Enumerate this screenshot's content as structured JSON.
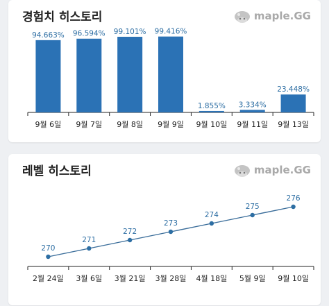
{
  "brand": {
    "text": "maple.GG"
  },
  "colors": {
    "bar": "#2b72b5",
    "line": "#3a6d9a",
    "point": "#2d6ea3",
    "label": "#2d6ea3",
    "axis": "#222222"
  },
  "exp_card": {
    "title": "경험치 히스토리"
  },
  "level_card": {
    "title": "레벨 히스토리"
  },
  "chart_data": [
    {
      "type": "bar",
      "title": "경험치 히스토리",
      "categories": [
        "9월 6일",
        "9월 7일",
        "9월 8일",
        "9월 9일",
        "9월 10일",
        "9월 11일",
        "9월 13일"
      ],
      "values": [
        94.663,
        96.594,
        99.101,
        99.416,
        1.855,
        3.334,
        23.448
      ],
      "value_labels": [
        "94.663%",
        "96.594%",
        "99.101%",
        "99.416%",
        "1.855%",
        "3.334%",
        "23.448%"
      ],
      "ylim": [
        0,
        100
      ],
      "grid": false
    },
    {
      "type": "line",
      "title": "레벨 히스토리",
      "categories": [
        "2월 24일",
        "3월 6일",
        "3월 21일",
        "3월 28일",
        "4월 18일",
        "5월 9일",
        "9월 10일"
      ],
      "values": [
        270,
        271,
        272,
        273,
        274,
        275,
        276
      ],
      "value_labels": [
        "270",
        "271",
        "272",
        "273",
        "274",
        "275",
        "276"
      ],
      "ylim": [
        270,
        276
      ],
      "grid": false
    }
  ]
}
